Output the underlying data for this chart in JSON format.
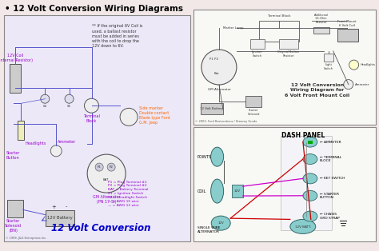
{
  "title": "• 12 Volt Conversion Wiring Diagrams",
  "bg_color": "#f2e8e8",
  "left_panel_bg": "#e8e0f0",
  "right_panel_bg": "#f5f5f5",
  "note_text": "** If the original 6V Coil is\nused, a ballast resistor\nmust be added in series\nwith the coil to drop the\n12V down to 6V.",
  "left_bottom_title": "12 Volt Conversion",
  "copyright_left": "© 1999, J&G Enterprises Inc.",
  "copyright_right": "© 2003, Ford Restorations / Stancey Scudo",
  "tr_title": "12 Volt Conversion\nWiring Diagram for\n6 Volt Front Mount Coil",
  "br_dash_title": "DASH PANEL",
  "wire_blue": "#5555cc",
  "wire_gray": "#555555",
  "wire_red": "#cc0000",
  "wire_magenta": "#cc00cc",
  "wire_green": "#00aa00",
  "label_purple": "#9900cc",
  "label_orange": "#ff6600",
  "comp_teal": "#88cccc",
  "comp_edge": "#336666"
}
